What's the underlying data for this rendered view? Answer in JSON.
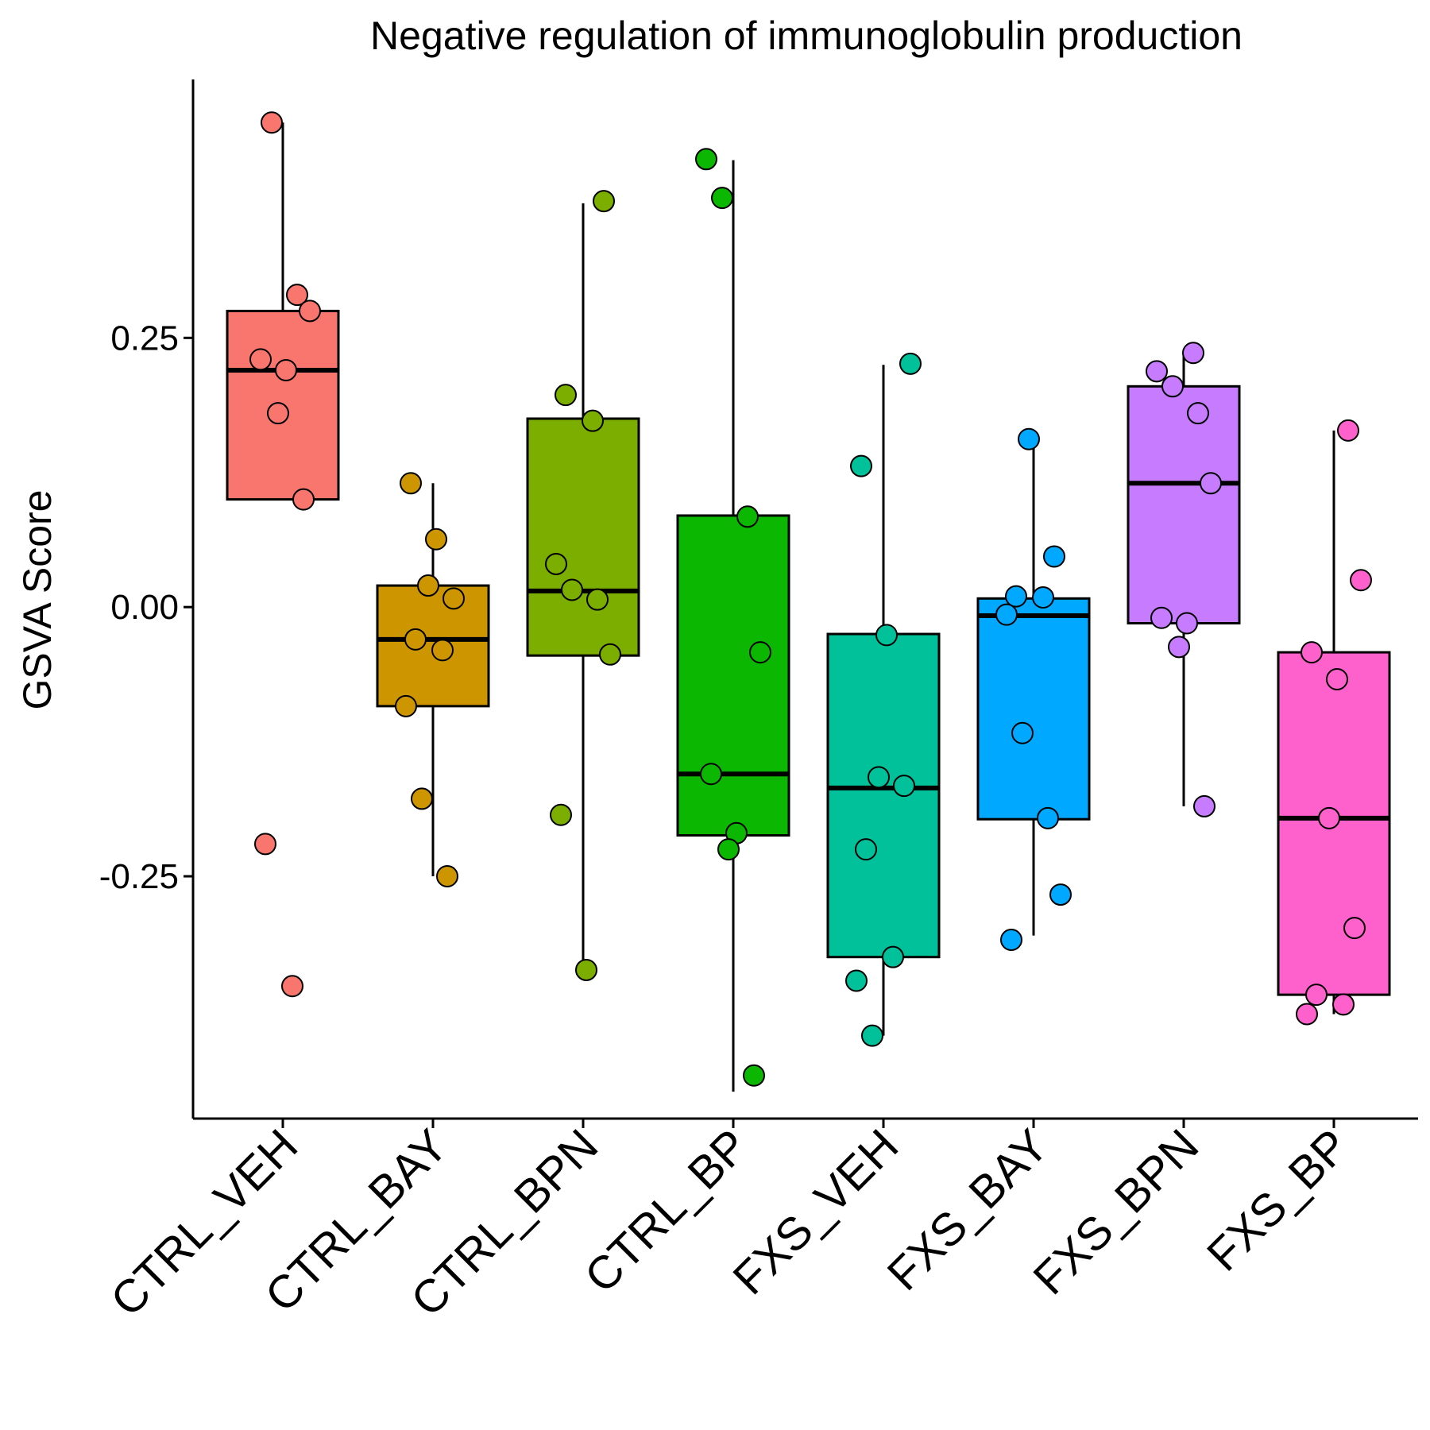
{
  "chart_data": {
    "type": "box",
    "title": "Negative regulation of immunoglobulin production",
    "xlabel": "",
    "ylabel": "GSVA Score",
    "ylim": [
      -0.475,
      0.49
    ],
    "yticks": [
      0.25,
      0.0,
      -0.25
    ],
    "ytick_labels": [
      "0.25",
      "0.00",
      "-0.25"
    ],
    "grid": false,
    "legend": "none",
    "categories": [
      "CTRL_VEH",
      "CTRL_BAY",
      "CTRL_BPN",
      "CTRL_BP",
      "FXS_VEH",
      "FXS_BAY",
      "FXS_BPN",
      "FXS_BP"
    ],
    "groups": [
      {
        "name": "CTRL_VEH",
        "color": "#F8766D",
        "box": {
          "whisker_low": 0.1,
          "q1": 0.1,
          "median": 0.22,
          "q3": 0.275,
          "whisker_high": 0.45
        },
        "points": [
          0.45,
          0.29,
          0.275,
          0.23,
          0.22,
          0.18,
          0.1,
          -0.22,
          -0.352
        ]
      },
      {
        "name": "CTRL_BAY",
        "color": "#CD9600",
        "box": {
          "whisker_low": -0.25,
          "q1": -0.092,
          "median": -0.03,
          "q3": 0.02,
          "whisker_high": 0.115
        },
        "points": [
          0.115,
          0.063,
          0.02,
          0.008,
          -0.03,
          -0.04,
          -0.092,
          -0.178,
          -0.25
        ]
      },
      {
        "name": "CTRL_BPN",
        "color": "#7CAE00",
        "box": {
          "whisker_low": -0.335,
          "q1": -0.045,
          "median": 0.015,
          "q3": 0.175,
          "whisker_high": 0.375
        },
        "points": [
          0.377,
          0.197,
          0.173,
          0.04,
          0.016,
          0.007,
          -0.044,
          -0.193,
          -0.337
        ]
      },
      {
        "name": "CTRL_BP",
        "color": "#0CB702",
        "box": {
          "whisker_low": -0.45,
          "q1": -0.212,
          "median": -0.155,
          "q3": 0.085,
          "whisker_high": 0.415
        },
        "points": [
          0.416,
          0.38,
          0.084,
          -0.042,
          -0.155,
          -0.21,
          -0.225,
          -0.435
        ]
      },
      {
        "name": "FXS_VEH",
        "color": "#00C19A",
        "box": {
          "whisker_low": -0.398,
          "q1": -0.325,
          "median": -0.168,
          "q3": -0.025,
          "whisker_high": 0.225
        },
        "points": [
          0.226,
          0.131,
          -0.026,
          -0.158,
          -0.166,
          -0.225,
          -0.325,
          -0.347,
          -0.398
        ]
      },
      {
        "name": "FXS_BAY",
        "color": "#00A9FF",
        "box": {
          "whisker_low": -0.305,
          "q1": -0.197,
          "median": -0.008,
          "q3": 0.008,
          "whisker_high": 0.155
        },
        "points": [
          0.156,
          0.047,
          0.01,
          0.009,
          -0.007,
          -0.117,
          -0.196,
          -0.267,
          -0.309
        ]
      },
      {
        "name": "FXS_BPN",
        "color": "#C77CFF",
        "box": {
          "whisker_low": -0.185,
          "q1": -0.015,
          "median": 0.115,
          "q3": 0.205,
          "whisker_high": 0.235
        },
        "points": [
          0.236,
          0.219,
          0.205,
          0.18,
          0.115,
          -0.01,
          -0.015,
          -0.037,
          -0.185
        ]
      },
      {
        "name": "FXS_BP",
        "color": "#FF61CC",
        "box": {
          "whisker_low": -0.378,
          "q1": -0.36,
          "median": -0.196,
          "q3": -0.042,
          "whisker_high": 0.164
        },
        "points": [
          0.164,
          0.025,
          -0.042,
          -0.067,
          -0.196,
          -0.298,
          -0.36,
          -0.369,
          -0.378
        ]
      }
    ]
  }
}
